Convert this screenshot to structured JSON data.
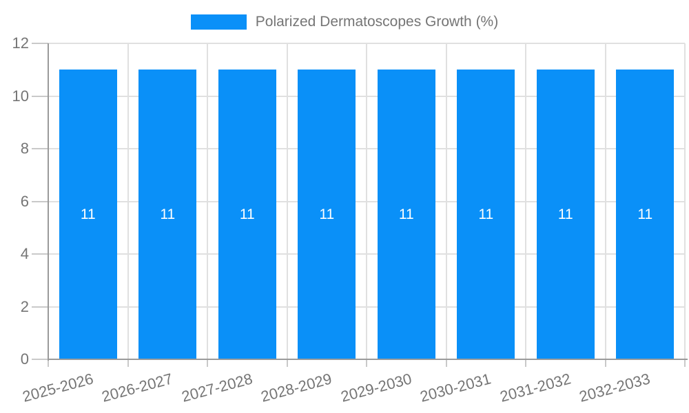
{
  "colors": {
    "bar": "#0a90f8",
    "text": "#757575",
    "grid": "#e0e0e0",
    "axis": "#9a9a9a",
    "tick": "#c9c9c9",
    "value_label": "#ffffff",
    "background": "#ffffff"
  },
  "legend": {
    "label": "Polarized Dermatoscopes Growth (%)"
  },
  "chart_data": {
    "type": "bar",
    "title": "Polarized Dermatoscopes Growth (%)",
    "categories": [
      "2025-2026",
      "2026-2027",
      "2027-2028",
      "2028-2029",
      "2029-2030",
      "2030-2031",
      "2031-2032",
      "2032-2033"
    ],
    "values": [
      11,
      11,
      11,
      11,
      11,
      11,
      11,
      11
    ],
    "value_labels": [
      "11",
      "11",
      "11",
      "11",
      "11",
      "11",
      "11",
      "11"
    ],
    "xlabel": "",
    "ylabel": "",
    "ylim": [
      0,
      12
    ],
    "yticks": [
      0,
      2,
      4,
      6,
      8,
      10,
      12
    ],
    "grid": true,
    "legend_position": "top",
    "bar_color": "#0a90f8",
    "value_label_position": "inside-center",
    "xtick_rotation_deg": -15
  }
}
